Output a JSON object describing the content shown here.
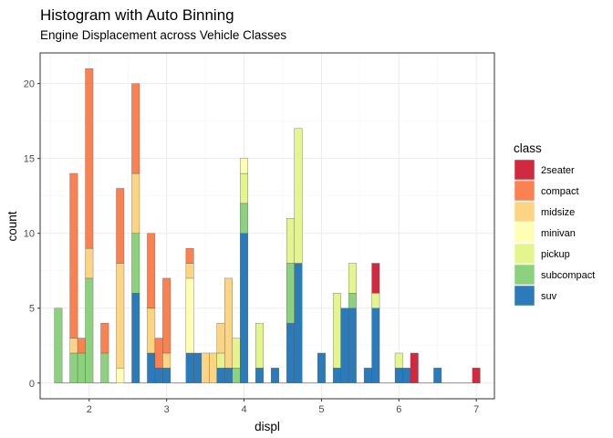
{
  "chart_data": {
    "type": "bar",
    "stacked": true,
    "title": "Histogram with Auto Binning",
    "subtitle": "Engine Displacement across Vehicle Classes",
    "xlabel": "displ",
    "ylabel": "count",
    "xlim": [
      1.366,
      7.234
    ],
    "ylim": [
      -1.05,
      22.05
    ],
    "x_ticks": [
      2,
      3,
      4,
      5,
      6,
      7
    ],
    "y_ticks": [
      0,
      5,
      10,
      15,
      20
    ],
    "legend_title": "class",
    "legend_position": "right",
    "bin_width": 0.1,
    "bin_centers": [
      1.6,
      1.7,
      1.8,
      1.9,
      2.0,
      2.1,
      2.2,
      2.3,
      2.4,
      2.5,
      2.6,
      2.7,
      2.8,
      2.9,
      3.0,
      3.1,
      3.2,
      3.3,
      3.4,
      3.5,
      3.6,
      3.7,
      3.8,
      3.9,
      4.0,
      4.1,
      4.2,
      4.3,
      4.4,
      4.5,
      4.6,
      4.7,
      4.8,
      4.9,
      5.0,
      5.1,
      5.2,
      5.3,
      5.4,
      5.5,
      5.6,
      5.7,
      5.8,
      5.9,
      6.0,
      6.1,
      6.2,
      6.3,
      6.4,
      6.5,
      6.6,
      6.7,
      6.8,
      6.9,
      7.0
    ],
    "series": [
      {
        "name": "suv",
        "color": "#2b7bba",
        "values": [
          0,
          0,
          0,
          0,
          0,
          0,
          0,
          0,
          0,
          0,
          6,
          0,
          2,
          1,
          1,
          0,
          0,
          2,
          2,
          0,
          0,
          1,
          1,
          0,
          10,
          0,
          1,
          0,
          1,
          0,
          4,
          8,
          0,
          0,
          2,
          0,
          1,
          5,
          5,
          0,
          1,
          5,
          0,
          0,
          1,
          1,
          0,
          0,
          0,
          1,
          0,
          0,
          0,
          0,
          0
        ]
      },
      {
        "name": "subcompact",
        "color": "#8cd17d",
        "values": [
          5,
          0,
          2,
          2,
          7,
          0,
          2,
          0,
          0,
          0,
          4,
          0,
          0,
          0,
          0,
          0,
          0,
          0,
          0,
          0,
          0,
          0,
          0,
          1,
          2,
          0,
          0,
          0,
          0,
          0,
          4,
          0,
          0,
          0,
          0,
          0,
          0,
          0,
          1,
          0,
          0,
          0,
          0,
          0,
          0,
          0,
          0,
          0,
          0,
          0,
          0,
          0,
          0,
          0,
          0
        ]
      },
      {
        "name": "pickup",
        "color": "#e5f58e",
        "values": [
          0,
          0,
          0,
          0,
          0,
          0,
          0,
          0,
          0,
          0,
          0,
          0,
          0,
          0,
          0,
          0,
          0,
          0,
          0,
          0,
          0,
          1,
          0,
          2,
          2,
          0,
          3,
          0,
          0,
          0,
          3,
          9,
          0,
          0,
          0,
          0,
          5,
          0,
          2,
          0,
          0,
          1,
          0,
          0,
          1,
          0,
          0,
          0,
          0,
          0,
          0,
          0,
          0,
          0,
          0
        ]
      },
      {
        "name": "minivan",
        "color": "#ffffb3",
        "values": [
          0,
          0,
          0,
          0,
          0,
          0,
          0,
          0,
          1,
          0,
          0,
          0,
          0,
          0,
          0,
          0,
          0,
          5,
          0,
          0,
          0,
          0,
          0,
          0,
          1,
          0,
          0,
          0,
          0,
          0,
          0,
          0,
          0,
          0,
          0,
          0,
          0,
          0,
          0,
          0,
          0,
          0,
          0,
          0,
          0,
          0,
          0,
          0,
          0,
          0,
          0,
          0,
          0,
          0,
          0
        ]
      },
      {
        "name": "midsize",
        "color": "#fdd582",
        "values": [
          0,
          0,
          1,
          0,
          2,
          0,
          0,
          0,
          7,
          0,
          4,
          0,
          3,
          0,
          1,
          0,
          0,
          1,
          0,
          2,
          2,
          2,
          6,
          0,
          0,
          0,
          0,
          0,
          0,
          0,
          0,
          0,
          0,
          0,
          0,
          0,
          0,
          0,
          0,
          0,
          0,
          0,
          0,
          0,
          0,
          0,
          0,
          0,
          0,
          0,
          0,
          0,
          0,
          0,
          0
        ]
      },
      {
        "name": "compact",
        "color": "#fb8150",
        "values": [
          0,
          0,
          11,
          1,
          12,
          0,
          2,
          0,
          5,
          0,
          6,
          0,
          5,
          2,
          5,
          0,
          0,
          1,
          0,
          0,
          0,
          0,
          0,
          0,
          0,
          0,
          0,
          0,
          0,
          0,
          0,
          0,
          0,
          0,
          0,
          0,
          0,
          0,
          0,
          0,
          0,
          0,
          0,
          0,
          0,
          0,
          0,
          0,
          0,
          0,
          0,
          0,
          0,
          0,
          0
        ]
      },
      {
        "name": "2seater",
        "color": "#d1293f",
        "values": [
          0,
          0,
          0,
          0,
          0,
          0,
          0,
          0,
          0,
          0,
          0,
          0,
          0,
          0,
          0,
          0,
          0,
          0,
          0,
          0,
          0,
          0,
          0,
          0,
          0,
          0,
          0,
          0,
          0,
          0,
          0,
          0,
          0,
          0,
          0,
          0,
          0,
          0,
          0,
          0,
          0,
          2,
          0,
          0,
          0,
          0,
          2,
          0,
          0,
          0,
          0,
          0,
          0,
          0,
          1
        ]
      }
    ],
    "legend_order": [
      "2seater",
      "compact",
      "midsize",
      "minivan",
      "pickup",
      "subcompact",
      "suv"
    ]
  }
}
